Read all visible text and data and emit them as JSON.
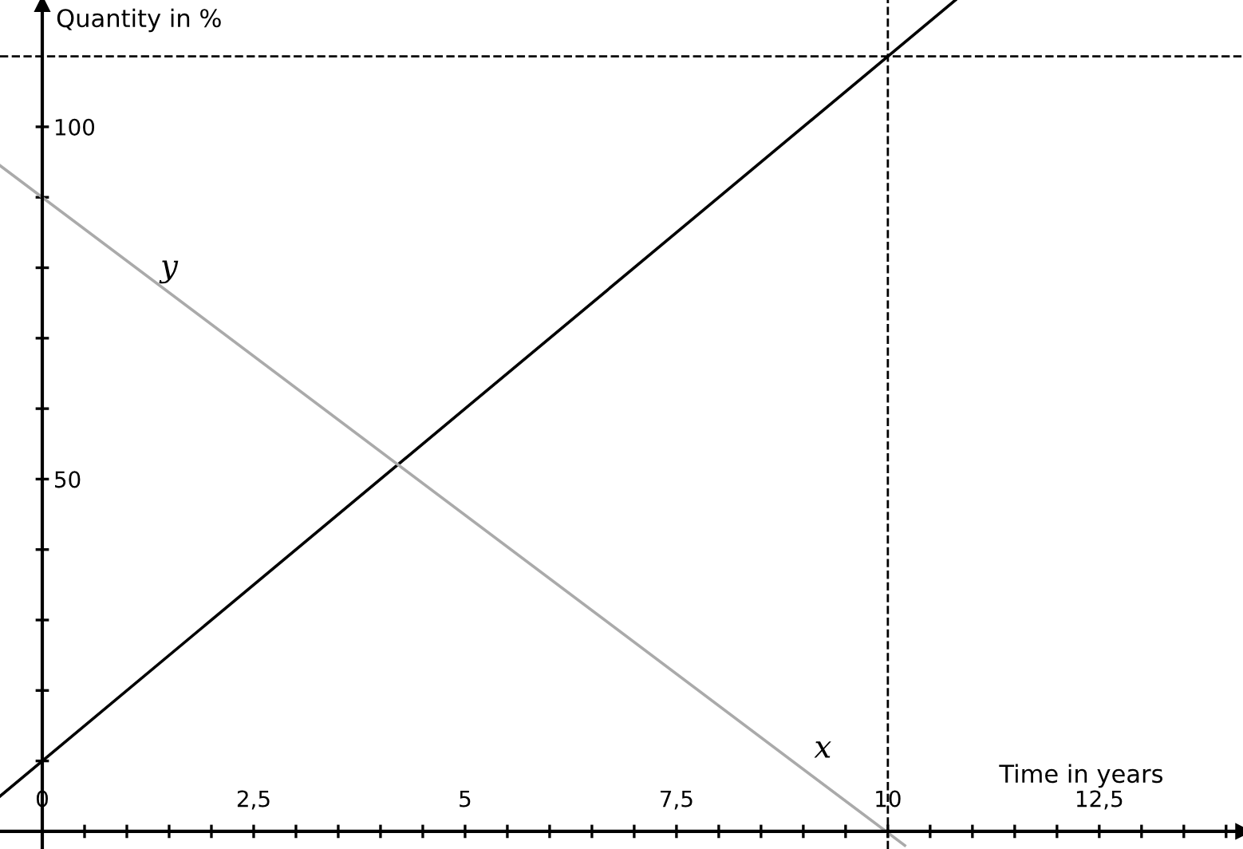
{
  "chart_data": {
    "type": "line",
    "xlabel": "Time in years",
    "ylabel": "Quantity in %",
    "series": [
      {
        "color": "#000000",
        "x": [
          -0.5,
          10.8
        ],
        "values": [
          5,
          118
        ]
      },
      {
        "color": "#aaaaaa",
        "x": [
          -0.5,
          10.2
        ],
        "values": [
          94.5,
          -2
        ]
      }
    ],
    "xlim": [
      -0.5,
      14.2
    ],
    "ylim": [
      -2.5,
      118
    ],
    "xticks": [
      {
        "value": 0,
        "label": "0"
      },
      {
        "value": 0.5,
        "label": null
      },
      {
        "value": 1,
        "label": null
      },
      {
        "value": 1.5,
        "label": null
      },
      {
        "value": 2,
        "label": null
      },
      {
        "value": 2.5,
        "label": "2,5"
      },
      {
        "value": 3,
        "label": null
      },
      {
        "value": 3.5,
        "label": null
      },
      {
        "value": 4,
        "label": null
      },
      {
        "value": 4.5,
        "label": null
      },
      {
        "value": 5,
        "label": "5"
      },
      {
        "value": 5.5,
        "label": null
      },
      {
        "value": 6,
        "label": null
      },
      {
        "value": 6.5,
        "label": null
      },
      {
        "value": 7,
        "label": null
      },
      {
        "value": 7.5,
        "label": "7,5"
      },
      {
        "value": 8,
        "label": null
      },
      {
        "value": 8.5,
        "label": null
      },
      {
        "value": 9,
        "label": null
      },
      {
        "value": 9.5,
        "label": null
      },
      {
        "value": 10,
        "label": "10"
      },
      {
        "value": 10.5,
        "label": null
      },
      {
        "value": 11,
        "label": null
      },
      {
        "value": 11.5,
        "label": null
      },
      {
        "value": 12,
        "label": null
      },
      {
        "value": 12.5,
        "label": "12,5"
      },
      {
        "value": 13,
        "label": null
      },
      {
        "value": 13.5,
        "label": null
      },
      {
        "value": 14,
        "label": null
      }
    ],
    "yticks": [
      {
        "value": 10,
        "label": null
      },
      {
        "value": 20,
        "label": null
      },
      {
        "value": 30,
        "label": null
      },
      {
        "value": 40,
        "label": null
      },
      50,
      {
        "value": 60,
        "label": null
      },
      {
        "value": 70,
        "label": null
      },
      {
        "value": 80,
        "label": null
      },
      {
        "value": 90,
        "label": null
      },
      100
    ],
    "ref_lines": [
      {
        "axis": "y",
        "value": 110,
        "line_style": "dashed",
        "color": "#000000"
      },
      {
        "axis": "x",
        "value": 10,
        "line_style": "dashed",
        "color": "#000000"
      }
    ],
    "annotations": [
      {
        "text": "y",
        "x": 1.5,
        "y": 76.5
      },
      "x"
    ],
    "marker": "none",
    "line_style": "solid",
    "grid": false,
    "legend": false
  }
}
